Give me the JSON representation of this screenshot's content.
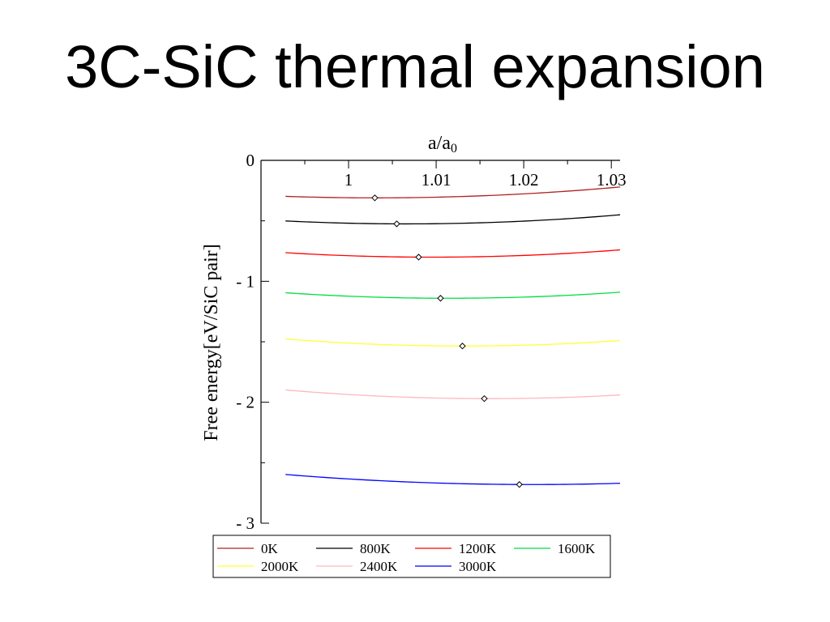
{
  "slide": {
    "title": "3C-SiC thermal expansion"
  },
  "chart_data": {
    "type": "line",
    "title": "",
    "xlabel": "a/a",
    "xlabel_subscript": "0",
    "ylabel": "Free energy[eV/SiC pair]",
    "x_axis_position": "top",
    "xlim": [
      0.99,
      1.031
    ],
    "ylim": [
      -3.0,
      0.0
    ],
    "xticks": [
      1,
      1.01,
      1.02,
      1.03
    ],
    "xtick_labels": [
      "1",
      "1.01",
      "1.02",
      "1.03"
    ],
    "yticks": [
      0,
      -1,
      -2,
      -3
    ],
    "ytick_labels": [
      "0",
      "- 1",
      "- 2",
      "- 3"
    ],
    "grid": false,
    "legend": "bottom",
    "series": [
      {
        "name": "0K",
        "color": "#b22222",
        "x": [
          0.99,
          1.003,
          1.031
        ],
        "y": [
          -0.29,
          -0.31,
          -0.22
        ],
        "min": [
          1.003,
          -0.31
        ]
      },
      {
        "name": "800K",
        "color": "#000000",
        "x": [
          0.99,
          1.0055,
          1.031
        ],
        "y": [
          -0.49,
          -0.525,
          -0.45
        ],
        "min": [
          1.0055,
          -0.525
        ]
      },
      {
        "name": "1200K",
        "color": "#ff0000",
        "x": [
          0.99,
          1.008,
          1.031
        ],
        "y": [
          -0.75,
          -0.8,
          -0.74
        ],
        "min": [
          1.008,
          -0.8
        ]
      },
      {
        "name": "1600K",
        "color": "#00dd40",
        "x": [
          0.99,
          1.0105,
          1.031
        ],
        "y": [
          -1.08,
          -1.14,
          -1.09
        ],
        "min": [
          1.0105,
          -1.14
        ]
      },
      {
        "name": "2000K",
        "color": "#ffff33",
        "x": [
          0.99,
          1.013,
          1.031
        ],
        "y": [
          -1.46,
          -1.535,
          -1.49
        ],
        "min": [
          1.013,
          -1.535
        ]
      },
      {
        "name": "2400K",
        "color": "#ffb6c1",
        "x": [
          0.99,
          1.0155,
          1.031
        ],
        "y": [
          -1.88,
          -1.97,
          -1.94
        ],
        "min": [
          1.0155,
          -1.97
        ]
      },
      {
        "name": "3000K",
        "color": "#0000ff",
        "x": [
          0.99,
          1.0195,
          1.031
        ],
        "y": [
          -2.58,
          -2.68,
          -2.67
        ],
        "min": [
          1.0195,
          -2.68
        ]
      }
    ]
  }
}
